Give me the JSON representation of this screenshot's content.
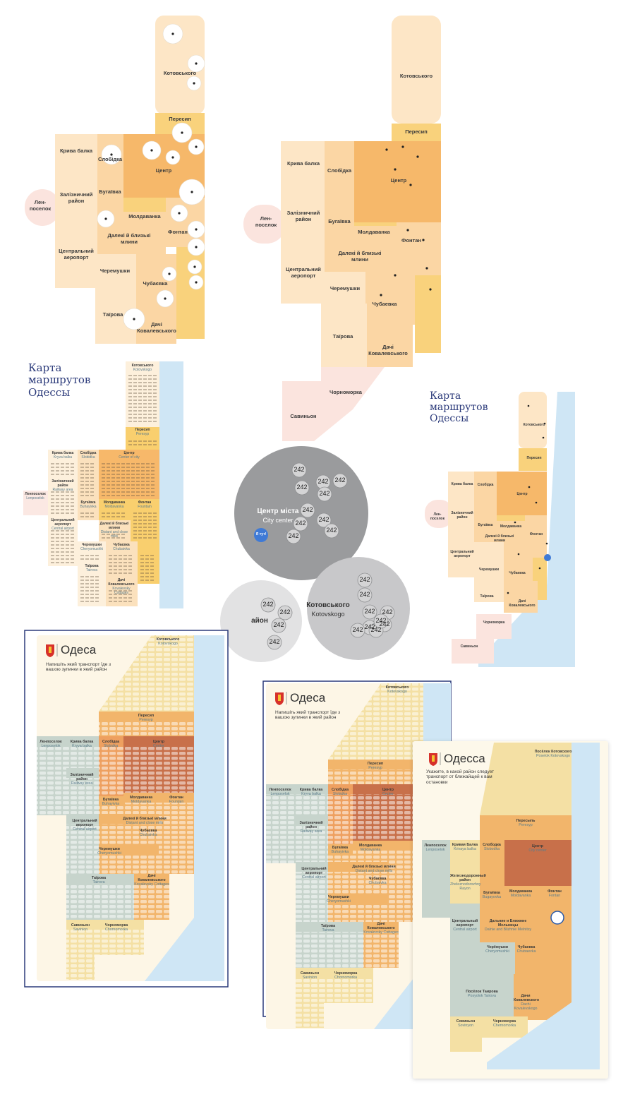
{
  "map_a": {
    "districts": [
      "Котовського",
      "Пересип",
      "Крива балка",
      "Слобідка",
      "Центр",
      "Залізничний район",
      "Бугаївка",
      "Лен-поселок",
      "Молдаванка",
      "Фонтан",
      "Далекі й близькі млини",
      "Центральний аеропорт",
      "Черемушки",
      "Чубаєвка",
      "Таїрова",
      "Дачі Ковалевського"
    ]
  },
  "map_b": {
    "districts": [
      "Котовського",
      "Пересип",
      "Крива балка",
      "Слобідка",
      "Центр",
      "Залізничний район",
      "Бугаївка",
      "Лен-поселок",
      "Молдаванка",
      "Фонтан",
      "Далекі й близькі млини",
      "Центральний аеропорт",
      "Черемушки",
      "Чубаевка",
      "Таїрова",
      "Дачі Ковалевського",
      "Чорноморка",
      "Савиньон"
    ]
  },
  "route_map_a": {
    "title": "Карта маршрутов Одессы",
    "districts": [
      {
        "name": "Котовського",
        "en": "Kotovskogo"
      },
      {
        "name": "Пересип",
        "en": "Peresyp"
      },
      {
        "name": "Крива балка",
        "en": "Kryva balka"
      },
      {
        "name": "Слобідка",
        "en": "Slobidka"
      },
      {
        "name": "Центр",
        "en": "Center of city"
      },
      {
        "name": "Ленпоселок",
        "en": "Lenposelok"
      },
      {
        "name": "Залізничний район",
        "en": "Railway area"
      },
      {
        "name": "Бугаївка",
        "en": "Buhayivka"
      },
      {
        "name": "Молдаванка",
        "en": "Moldavanka"
      },
      {
        "name": "Фонтан",
        "en": "Fountain"
      },
      {
        "name": "Центральний аеропорт",
        "en": "Central airport"
      },
      {
        "name": "Далекі й близькі млини",
        "en": "Distant and close mills"
      },
      {
        "name": "Черемушки",
        "en": "Cheryomushki"
      },
      {
        "name": "Чубаєвка",
        "en": "Chubaivka"
      },
      {
        "name": "Таїрова",
        "en": "Tairova"
      },
      {
        "name": "Дачі Ковалевського",
        "en": "Kovalevsky Cottages"
      }
    ]
  },
  "bubbles": [
    {
      "name": "Центр міста",
      "en": "City center",
      "marker": "Я тут!",
      "routes": [
        "242",
        "242",
        "242",
        "242",
        "242",
        "242",
        "242",
        "242",
        "242",
        "242"
      ]
    },
    {
      "name": "Котовського",
      "en": "Kotovskogo",
      "routes": [
        "242",
        "242",
        "242",
        "242",
        "242",
        "242",
        "242",
        "242",
        "242"
      ]
    },
    {
      "name": "айон",
      "routes": [
        "242",
        "242",
        "242",
        "242"
      ]
    }
  ],
  "route_map_b": {
    "title": "Карта маршрутов Одессы",
    "districts": [
      "Котовського",
      "Пересип",
      "Крива балка",
      "Слобідка",
      "Центр",
      "Лен-поселок",
      "Залізничний район",
      "Бугаївка",
      "Молдаванка",
      "Фонтан",
      "Далекі й близькі млини",
      "Центральний аеропорт",
      "Черемушки",
      "Чубаевка",
      "Таїрова",
      "Дачі Ковалевського",
      "Чорноморка",
      "Савиньон"
    ]
  },
  "posters": [
    {
      "city": "Одеса",
      "prompt": "Напишіть який транспорт їде з вашою зупинки в який район",
      "districts": [
        {
          "name": "Котовського",
          "en": "Kotovskogo"
        },
        {
          "name": "Пересип",
          "en": "Peresyp"
        },
        {
          "name": "Ленпоселок",
          "en": "Lenposelok"
        },
        {
          "name": "Крива балка",
          "en": "Kryva balka"
        },
        {
          "name": "Слобідка",
          "en": "Slobidka"
        },
        {
          "name": "Центр",
          "en": "Center"
        },
        {
          "name": "Залізничний район",
          "en": "Railway area"
        },
        {
          "name": "Бугаївка",
          "en": "Buhayivka"
        },
        {
          "name": "Молдаванка",
          "en": "Moldavanka"
        },
        {
          "name": "Фонтан",
          "en": "Fountain"
        },
        {
          "name": "Центральний аеропорт",
          "en": "Central airport"
        },
        {
          "name": "Далекі й близькі млини",
          "en": "Distant and close mills"
        },
        {
          "name": "Черемушки",
          "en": "Cheryomushki"
        },
        {
          "name": "Чубаєвка",
          "en": "Chubaivka"
        },
        {
          "name": "Таїрова",
          "en": "Tairova"
        },
        {
          "name": "Дачі Ковалевського",
          "en": "Kovalevsky Cottages"
        },
        {
          "name": "Савиньон",
          "en": "Savinion"
        },
        {
          "name": "Чорноморка",
          "en": "Chornomorka"
        }
      ]
    },
    {
      "city": "Одеса",
      "prompt": "Напишіть який транспорт їде з вашою зупинки в який район",
      "districts": [
        {
          "name": "Котовського",
          "en": "Kotovskogo"
        },
        {
          "name": "Пересип",
          "en": "Peresyp"
        },
        {
          "name": "Ленпоселок",
          "en": "Lenposelok"
        },
        {
          "name": "Крива балка",
          "en": "Kryva balka"
        },
        {
          "name": "Слобідка",
          "en": "Slobidka"
        },
        {
          "name": "Центр",
          "en": "Center"
        },
        {
          "name": "Залізничний район",
          "en": "Railway area"
        },
        {
          "name": "Бугаївка",
          "en": "Buhayivka"
        },
        {
          "name": "Молдаванка",
          "en": "Moldavanka"
        },
        {
          "name": "Центральний аеропорт",
          "en": "Central airport"
        },
        {
          "name": "Далекі й близькі млини",
          "en": "Distant and close mills"
        },
        {
          "name": "Черемушки",
          "en": "Cheryomushki"
        },
        {
          "name": "Чубаєвка",
          "en": "Chubaivka"
        },
        {
          "name": "Таїрова",
          "en": "Tairova"
        },
        {
          "name": "Дачі Ковалевського",
          "en": "Kovalevsky Cottages"
        },
        {
          "name": "Савиньон",
          "en": "Savinion"
        },
        {
          "name": "Чорноморка",
          "en": "Chornomorka"
        }
      ]
    },
    {
      "city": "Одесса",
      "prompt": "Укажите, в какой район следует транспорт от ближайщей к вам остановки",
      "districts": [
        {
          "name": "Посёлок Котовского",
          "en": "Poselok Kotovskogo"
        },
        {
          "name": "Пересыпь",
          "en": "Peresyp"
        },
        {
          "name": "Ленпоселок",
          "en": "Lenposelok"
        },
        {
          "name": "Кривая Балка",
          "en": "Krivaya balka"
        },
        {
          "name": "Слободка",
          "en": "Slobodka"
        },
        {
          "name": "Центр",
          "en": "City center"
        },
        {
          "name": "Железнодорожный район",
          "en": "Zheleznodorozhny Rayon"
        },
        {
          "name": "Бугаёвка",
          "en": "Bugayovka"
        },
        {
          "name": "Молдаванка",
          "en": "Moldavanka"
        },
        {
          "name": "Фонтан",
          "en": "Fontan"
        },
        {
          "name": "Центральный аэропорт",
          "en": "Central airport"
        },
        {
          "name": "Дальние и Ближние Мельницы",
          "en": "Dalnie and Blizhnie Melnitsy"
        },
        {
          "name": "Черёмушки",
          "en": "Cheryomushki"
        },
        {
          "name": "Чубаевка",
          "en": "Chubaevka"
        },
        {
          "name": "Посёлок Таирова",
          "en": "Posyolok Tairova"
        },
        {
          "name": "Дачи Ковалевского",
          "en": "Dachi Kovalevskogo"
        },
        {
          "name": "Совиньон",
          "en": "Sovinyon"
        },
        {
          "name": "Черноморка",
          "en": "Chernomorka"
        }
      ]
    }
  ]
}
